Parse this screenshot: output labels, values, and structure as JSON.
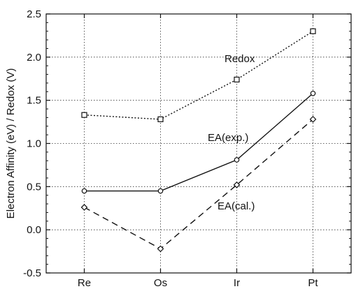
{
  "chart_data": {
    "type": "line",
    "categories": [
      "Re",
      "Os",
      "Ir",
      "Pt"
    ],
    "ylabel": "Electron Affinity (eV) / Redox (V)",
    "ylim": [
      -0.5,
      2.5
    ],
    "yticks": [
      "-0.5",
      "0.0",
      "0.5",
      "1.0",
      "1.5",
      "2.0",
      "2.5"
    ],
    "grid": "dotted",
    "series": [
      {
        "name": "Redox",
        "values": [
          1.33,
          1.28,
          1.74,
          2.3
        ],
        "marker": "square",
        "line": "dotted",
        "color": "#111111"
      },
      {
        "name": "EA(exp.)",
        "values": [
          0.45,
          0.45,
          0.81,
          1.58
        ],
        "marker": "circle",
        "line": "solid",
        "color": "#111111"
      },
      {
        "name": "EA(cal.)",
        "values": [
          0.26,
          -0.22,
          0.52,
          1.28
        ],
        "marker": "diamond",
        "line": "dashed",
        "color": "#111111"
      }
    ]
  }
}
